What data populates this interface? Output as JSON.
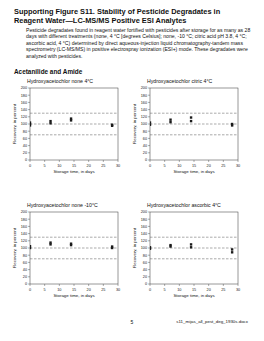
{
  "title": "Supporting Figure S11. Stability of Pesticide Degradates in Reagent Water—LC-MS/MS Positive ESI Analytes",
  "description": "Pesticide degradates found in reagent water fortified with pesticides after storage for as many as 28 days with different treatments (none, 4 °C [degrees Celsius]; none, -10 °C; citric acid pH 3.8, 4 °C; ascorbic acid, 4 °C) determined by direct aqueous-injection liquid chromatography-tandem mass spectrometry (LC-MS/MS) in positive electrospray ionization (ESI+) mode. These degradates were analyzed with pesticides.",
  "section": "Acetanilide and Amide",
  "chart_data": [
    {
      "type": "scatter",
      "title": "Hydroxyacetochlor none 4°C",
      "x_label": "Storage time, in days",
      "y_label": "Recovery, in percent",
      "xlim": [
        0,
        30
      ],
      "xticks": [
        0,
        5,
        10,
        15,
        20,
        25,
        30
      ],
      "ylim": [
        0,
        200
      ],
      "yticks": [
        0,
        20,
        40,
        60,
        80,
        100,
        120,
        140,
        160,
        180,
        200
      ],
      "reference_lines": [
        70,
        100,
        130
      ],
      "series": [
        {
          "color": "#1a1a1a",
          "marker": "square",
          "x": [
            0,
            0,
            0,
            7,
            7,
            14,
            14,
            28,
            28
          ],
          "values": [
            96,
            100,
            104,
            102,
            108,
            110,
            115,
            95,
            98
          ]
        }
      ]
    },
    {
      "type": "scatter",
      "title": "Hydroxyacetochlor citric 4°C",
      "x_label": "Storage time, in days",
      "y_label": "Recovery, in percent",
      "xlim": [
        0,
        30
      ],
      "xticks": [
        0,
        5,
        10,
        15,
        20,
        25,
        30
      ],
      "ylim": [
        0,
        200
      ],
      "yticks": [
        0,
        20,
        40,
        60,
        80,
        100,
        120,
        140,
        160,
        180,
        200
      ],
      "reference_lines": [
        70,
        100,
        130
      ],
      "series": [
        {
          "color": "#1a1a1a",
          "marker": "square",
          "x": [
            0,
            0,
            7,
            7,
            14,
            14,
            28,
            28
          ],
          "values": [
            98,
            104,
            105,
            112,
            108,
            118,
            96,
            100
          ]
        }
      ]
    },
    {
      "type": "scatter",
      "title": "Hydroxyacetochlor none -10°C",
      "x_label": "Storage time, in days",
      "y_label": "Recovery, in percent",
      "xlim": [
        0,
        30
      ],
      "xticks": [
        0,
        5,
        10,
        15,
        20,
        25,
        30
      ],
      "ylim": [
        0,
        200
      ],
      "yticks": [
        0,
        20,
        40,
        60,
        80,
        100,
        120,
        140,
        160,
        180,
        200
      ],
      "reference_lines": [
        70,
        100,
        130
      ],
      "series": [
        {
          "color": "#1a1a1a",
          "marker": "square",
          "x": [
            0,
            0,
            7,
            7,
            14,
            14,
            28,
            28
          ],
          "values": [
            100,
            105,
            110,
            115,
            108,
            112,
            100,
            104
          ]
        }
      ]
    },
    {
      "type": "scatter",
      "title": "Hydroxyacetochlor ascorbic 4°C",
      "x_label": "Storage time, in days",
      "y_label": "Recovery, in percent",
      "xlim": [
        0,
        30
      ],
      "xticks": [
        0,
        5,
        10,
        15,
        20,
        25,
        30
      ],
      "ylim": [
        0,
        200
      ],
      "yticks": [
        0,
        20,
        40,
        60,
        80,
        100,
        120,
        140,
        160,
        180,
        200
      ],
      "reference_lines": [
        70,
        100,
        130
      ],
      "series": [
        {
          "color": "#1a1a1a",
          "marker": "square",
          "x": [
            0,
            0,
            7,
            7,
            14,
            14,
            28,
            28
          ],
          "values": [
            98,
            102,
            104,
            108,
            102,
            110,
            88,
            96
          ]
        }
      ]
    }
  ],
  "footer": {
    "page": "5",
    "file": "s11_mijas_all_pest_deg_1930s.docx"
  }
}
